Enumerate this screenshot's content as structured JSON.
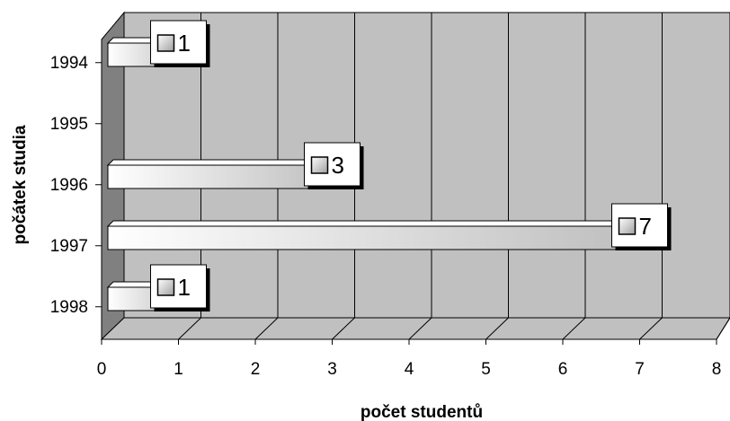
{
  "chart_data": {
    "type": "bar",
    "orientation": "horizontal",
    "three_d": true,
    "categories": [
      "1994",
      "1995",
      "1996",
      "1997",
      "1998"
    ],
    "values": [
      1,
      0,
      3,
      7,
      1
    ],
    "data_labels": [
      "1",
      "",
      "3",
      "7",
      "1"
    ],
    "xlabel": "počet studentů",
    "ylabel": "počátek studia",
    "xlim": [
      0,
      8
    ],
    "x_ticks": [
      "0",
      "1",
      "2",
      "3",
      "4",
      "5",
      "6",
      "7",
      "8"
    ],
    "grid": true,
    "legend": "none",
    "colors": {
      "wall": "#c0c0c0",
      "side_wall": "#808080",
      "floor": "#c0c0c0",
      "bar_light": "#ffffff",
      "bar_dark": "#bdbdbd",
      "label_box": "#ffffff"
    }
  }
}
